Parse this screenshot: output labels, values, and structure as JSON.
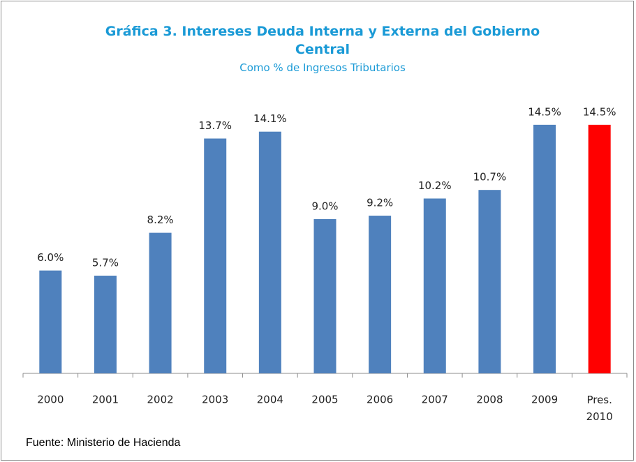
{
  "chart_data": {
    "type": "bar",
    "title": "Gráfica 3. Intereses Deuda Interna y Externa del Gobierno Central",
    "subtitle": "Como % de Ingresos Tributarios",
    "categories": [
      "2000",
      "2001",
      "2002",
      "2003",
      "2004",
      "2005",
      "2006",
      "2007",
      "2008",
      "2009",
      "Pres. 2010"
    ],
    "values": [
      6.0,
      5.7,
      8.2,
      13.7,
      14.1,
      9.0,
      9.2,
      10.2,
      10.7,
      14.5,
      14.5
    ],
    "value_labels": [
      "6.0%",
      "5.7%",
      "8.2%",
      "13.7%",
      "14.1%",
      "9.0%",
      "9.2%",
      "10.2%",
      "10.7%",
      "14.5%",
      "14.5%"
    ],
    "colors": [
      "#4f81bd",
      "#4f81bd",
      "#4f81bd",
      "#4f81bd",
      "#4f81bd",
      "#4f81bd",
      "#4f81bd",
      "#4f81bd",
      "#4f81bd",
      "#4f81bd",
      "#ff0000"
    ],
    "ylim": [
      0,
      16
    ],
    "source": "Fuente: Ministerio de Hacienda"
  }
}
